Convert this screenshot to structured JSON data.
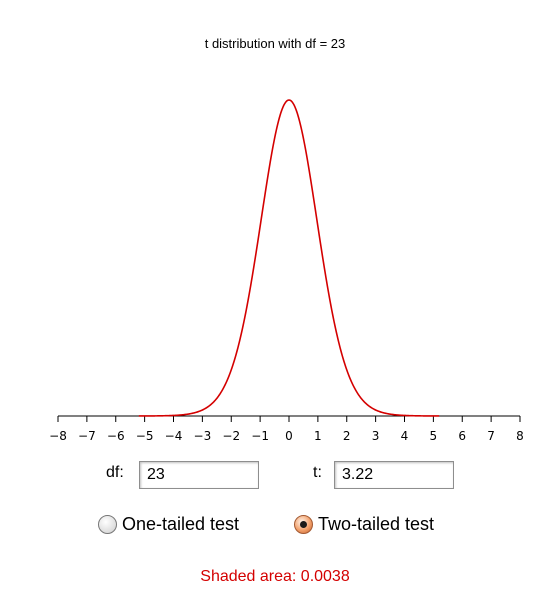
{
  "plot": {
    "title": "t distribution with df = 23",
    "df": 23,
    "t": 3.22,
    "x_range": [
      -8,
      8
    ],
    "tick_labels": [
      "-8",
      "-7",
      "-6",
      "-5",
      "-4",
      "-3",
      "-2",
      "-1",
      "0",
      "1",
      "2",
      "3",
      "4",
      "5",
      "6",
      "7",
      "8"
    ],
    "curve_color": "#d40000",
    "visible_curve_range": [
      -5.2,
      5.2
    ]
  },
  "inputs": {
    "df_label": "df:",
    "df_value": "23",
    "t_label": "t:",
    "t_value": "3.22"
  },
  "test_type": {
    "one_tailed_label": "One-tailed test",
    "two_tailed_label": "Two-tailed test",
    "selected": "two-tailed"
  },
  "result": {
    "text": "Shaded area: 0.0038",
    "color": "#d40000"
  }
}
